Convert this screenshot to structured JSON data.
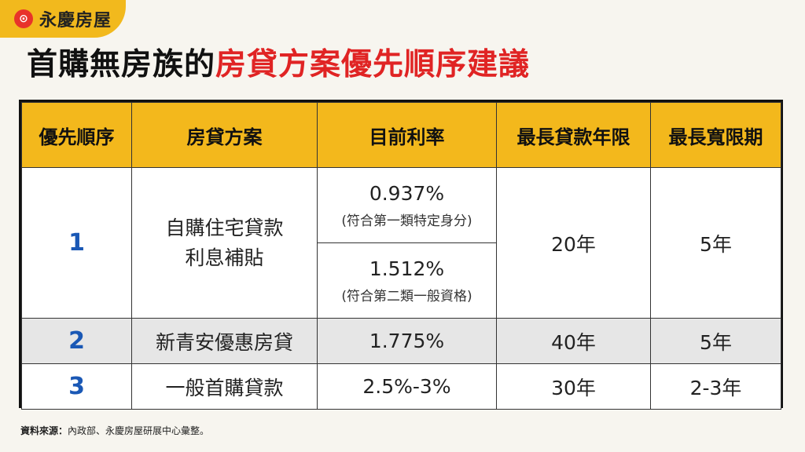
{
  "brand": {
    "name": "永慶房屋",
    "logo_char": "⊙"
  },
  "title": {
    "part1": "首購無房族的",
    "part2": "房貸方案優先順序建議"
  },
  "table": {
    "headers": [
      "優先順序",
      "房貸方案",
      "目前利率",
      "最長貸款年限",
      "最長寬限期"
    ],
    "rows": [
      {
        "rank": "1",
        "plan_line1": "自購住宅貸款",
        "plan_line2": "利息補貼",
        "rate_a": "0.937%",
        "rate_a_note": "(符合第一類特定身分)",
        "rate_b": "1.512%",
        "rate_b_note": "(符合第二類一般資格)",
        "years": "20年",
        "grace": "5年"
      },
      {
        "rank": "2",
        "plan": "新青安優惠房貸",
        "rate": "1.775%",
        "years": "40年",
        "grace": "5年"
      },
      {
        "rank": "3",
        "plan": "一般首購貸款",
        "rate": "2.5%-3%",
        "years": "30年",
        "grace": "2-3年"
      }
    ]
  },
  "footer": {
    "label": "資料來源：",
    "text": "內政部、永慶房屋研展中心彙整。"
  },
  "colors": {
    "accent_yellow": "#f3b81c",
    "title_red": "#e02424",
    "rank_blue": "#1a58b5"
  }
}
